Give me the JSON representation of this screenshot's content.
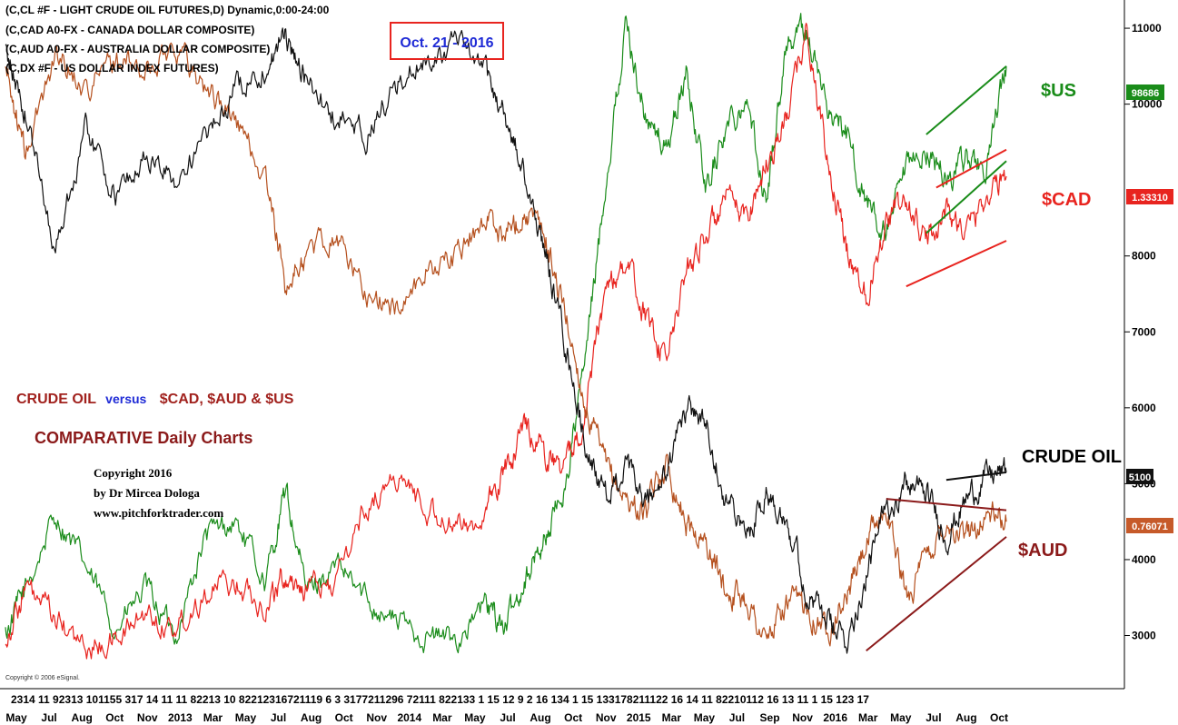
{
  "chart_data": {
    "type": "line",
    "header_lines": [
      "(C,CL #F - LIGHT CRUDE OIL FUTURES,D) Dynamic,0:00-24:00",
      "(C,CAD A0-FX - CANADA DOLLAR COMPOSITE)",
      "(C,AUD A0-FX - AUSTRALIA DOLLAR COMPOSITE)",
      "(C,DX #F - US DOLLAR INDEX FUTURES)"
    ],
    "date_box": "Oct. 21 - 2016",
    "title_parts": [
      "CRUDE OIL",
      "versus",
      "$CAD, $AUD & $US"
    ],
    "subtitle": "COMPARATIVE Daily Charts",
    "copyright_lines": [
      "Copyright 2016",
      "by Dr Mircea Dologa",
      "www.pitchforktrader.com"
    ],
    "esignal_note": "Copyright © 2006 eSignal.",
    "y_ticks": [
      3000,
      4000,
      5000,
      6000,
      7000,
      8000,
      10000,
      11000
    ],
    "y_tick_labels": [
      "3000",
      "4000",
      "5000",
      "6000",
      "7000",
      "8000",
      "10000",
      "11000"
    ],
    "x_day_labels": "2314 11 92313 101155 317 14 11 11 82213 10 82212316721119 6 3 3177211296 72111 822133 1 15 12 9 2 16 134 1 15 133178211122 16 14 11 82210112 16 13 11 1 15 123 17",
    "x_month_labels": [
      "May",
      "Jul",
      "Aug",
      "Oct",
      "Nov",
      "2013",
      "Mar",
      "May",
      "Jul",
      "Aug",
      "Oct",
      "Nov",
      "2014",
      "Mar",
      "May",
      "Jul",
      "Aug",
      "Oct",
      "Nov",
      "2015",
      "Mar",
      "May",
      "Jul",
      "Sep",
      "Nov",
      "2016",
      "Mar",
      "May",
      "Jul",
      "Aug",
      "Oct"
    ],
    "series": [
      {
        "name": "$US",
        "color": "#1a8c1a",
        "last_value": "98686",
        "points": [
          [
            0,
            3020
          ],
          [
            0.02,
            3600
          ],
          [
            0.05,
            4600
          ],
          [
            0.08,
            3900
          ],
          [
            0.11,
            3100
          ],
          [
            0.14,
            3600
          ],
          [
            0.17,
            3000
          ],
          [
            0.2,
            4300
          ],
          [
            0.23,
            4500
          ],
          [
            0.26,
            3700
          ],
          [
            0.28,
            4900
          ],
          [
            0.3,
            3600
          ],
          [
            0.33,
            3900
          ],
          [
            0.36,
            3500
          ],
          [
            0.39,
            3200
          ],
          [
            0.42,
            3000
          ],
          [
            0.45,
            2950
          ],
          [
            0.48,
            3400
          ],
          [
            0.5,
            3100
          ],
          [
            0.52,
            3800
          ],
          [
            0.54,
            4300
          ],
          [
            0.56,
            5000
          ],
          [
            0.58,
            6700
          ],
          [
            0.6,
            9000
          ],
          [
            0.62,
            11050
          ],
          [
            0.64,
            9800
          ],
          [
            0.66,
            9400
          ],
          [
            0.68,
            10400
          ],
          [
            0.7,
            8900
          ],
          [
            0.72,
            9700
          ],
          [
            0.74,
            10100
          ],
          [
            0.76,
            8700
          ],
          [
            0.78,
            10800
          ],
          [
            0.8,
            11000
          ],
          [
            0.82,
            10000
          ],
          [
            0.84,
            9600
          ],
          [
            0.86,
            8700
          ],
          [
            0.88,
            8250
          ],
          [
            0.9,
            9100
          ],
          [
            0.92,
            9400
          ],
          [
            0.94,
            9000
          ],
          [
            0.96,
            9300
          ],
          [
            0.98,
            9150
          ],
          [
            1.0,
            10500
          ]
        ]
      },
      {
        "name": "$CAD",
        "color": "#e8241f",
        "last_value": "1.33310",
        "points": [
          [
            0,
            2960
          ],
          [
            0.02,
            3600
          ],
          [
            0.05,
            3200
          ],
          [
            0.08,
            2800
          ],
          [
            0.11,
            2950
          ],
          [
            0.14,
            3300
          ],
          [
            0.17,
            3100
          ],
          [
            0.2,
            3600
          ],
          [
            0.23,
            3700
          ],
          [
            0.26,
            3400
          ],
          [
            0.28,
            3800
          ],
          [
            0.3,
            3600
          ],
          [
            0.33,
            3700
          ],
          [
            0.36,
            4700
          ],
          [
            0.39,
            5100
          ],
          [
            0.42,
            4700
          ],
          [
            0.45,
            4400
          ],
          [
            0.48,
            4600
          ],
          [
            0.5,
            5200
          ],
          [
            0.52,
            5800
          ],
          [
            0.54,
            5400
          ],
          [
            0.56,
            5200
          ],
          [
            0.58,
            6000
          ],
          [
            0.6,
            7600
          ],
          [
            0.62,
            7900
          ],
          [
            0.64,
            7200
          ],
          [
            0.66,
            6600
          ],
          [
            0.68,
            7800
          ],
          [
            0.7,
            8300
          ],
          [
            0.72,
            8700
          ],
          [
            0.74,
            8500
          ],
          [
            0.76,
            9200
          ],
          [
            0.78,
            9800
          ],
          [
            0.8,
            11000
          ],
          [
            0.82,
            9300
          ],
          [
            0.84,
            8100
          ],
          [
            0.86,
            7500
          ],
          [
            0.88,
            8500
          ],
          [
            0.9,
            8700
          ],
          [
            0.92,
            8200
          ],
          [
            0.94,
            8600
          ],
          [
            0.96,
            8300
          ],
          [
            0.98,
            8800
          ],
          [
            1.0,
            9050
          ]
        ]
      },
      {
        "name": "$AUD",
        "color": "#b5501e",
        "last_value": "0.76071",
        "points": [
          [
            0,
            10500
          ],
          [
            0.02,
            9300
          ],
          [
            0.05,
            10700
          ],
          [
            0.08,
            10200
          ],
          [
            0.11,
            10600
          ],
          [
            0.14,
            10400
          ],
          [
            0.17,
            10800
          ],
          [
            0.2,
            10200
          ],
          [
            0.23,
            9800
          ],
          [
            0.26,
            9000
          ],
          [
            0.28,
            7600
          ],
          [
            0.3,
            8000
          ],
          [
            0.33,
            8300
          ],
          [
            0.36,
            7500
          ],
          [
            0.39,
            7300
          ],
          [
            0.42,
            7800
          ],
          [
            0.45,
            8000
          ],
          [
            0.48,
            8500
          ],
          [
            0.5,
            8300
          ],
          [
            0.52,
            8600
          ],
          [
            0.54,
            8200
          ],
          [
            0.56,
            7200
          ],
          [
            0.58,
            6000
          ],
          [
            0.6,
            5200
          ],
          [
            0.62,
            4800
          ],
          [
            0.64,
            4600
          ],
          [
            0.66,
            5300
          ],
          [
            0.68,
            4500
          ],
          [
            0.7,
            4200
          ],
          [
            0.72,
            3600
          ],
          [
            0.74,
            3500
          ],
          [
            0.76,
            2900
          ],
          [
            0.78,
            3400
          ],
          [
            0.8,
            3400
          ],
          [
            0.82,
            3100
          ],
          [
            0.84,
            3500
          ],
          [
            0.86,
            4200
          ],
          [
            0.88,
            4700
          ],
          [
            0.9,
            3500
          ],
          [
            0.92,
            4000
          ],
          [
            0.94,
            4500
          ],
          [
            0.96,
            4300
          ],
          [
            0.98,
            4600
          ],
          [
            1.0,
            4500
          ]
        ]
      },
      {
        "name": "CRUDE OIL",
        "color": "#111111",
        "last_value": "5100",
        "points": [
          [
            0,
            10700
          ],
          [
            0.02,
            9900
          ],
          [
            0.05,
            8100
          ],
          [
            0.08,
            9700
          ],
          [
            0.11,
            8800
          ],
          [
            0.14,
            9300
          ],
          [
            0.17,
            9000
          ],
          [
            0.2,
            9500
          ],
          [
            0.23,
            10200
          ],
          [
            0.26,
            10500
          ],
          [
            0.28,
            10900
          ],
          [
            0.3,
            10300
          ],
          [
            0.33,
            9800
          ],
          [
            0.36,
            9600
          ],
          [
            0.39,
            10200
          ],
          [
            0.42,
            10600
          ],
          [
            0.45,
            10800
          ],
          [
            0.48,
            10400
          ],
          [
            0.5,
            9800
          ],
          [
            0.52,
            9000
          ],
          [
            0.54,
            8000
          ],
          [
            0.56,
            6800
          ],
          [
            0.58,
            5500
          ],
          [
            0.6,
            4800
          ],
          [
            0.62,
            5200
          ],
          [
            0.64,
            4700
          ],
          [
            0.66,
            5100
          ],
          [
            0.68,
            6000
          ],
          [
            0.7,
            5800
          ],
          [
            0.72,
            4800
          ],
          [
            0.74,
            4300
          ],
          [
            0.76,
            4900
          ],
          [
            0.78,
            4600
          ],
          [
            0.8,
            3600
          ],
          [
            0.82,
            3200
          ],
          [
            0.84,
            2900
          ],
          [
            0.86,
            3800
          ],
          [
            0.88,
            4700
          ],
          [
            0.9,
            5000
          ],
          [
            0.92,
            4900
          ],
          [
            0.94,
            4300
          ],
          [
            0.96,
            4800
          ],
          [
            0.98,
            5100
          ],
          [
            1.0,
            5150
          ]
        ]
      }
    ],
    "channels": [
      {
        "name": "$US",
        "color": "#1a8c1a",
        "lines": [
          [
            [
              0.92,
              9600
            ],
            [
              1.0,
              10500
            ]
          ],
          [
            [
              0.92,
              8300
            ],
            [
              1.0,
              9250
            ]
          ]
        ]
      },
      {
        "name": "$CAD",
        "color": "#e8241f",
        "lines": [
          [
            [
              0.93,
              8900
            ],
            [
              1.0,
              9400
            ]
          ],
          [
            [
              0.9,
              7600
            ],
            [
              1.0,
              8200
            ]
          ]
        ]
      },
      {
        "name": "CRUDE OIL",
        "color": "#111111",
        "lines": [
          [
            [
              0.94,
              5050
            ],
            [
              1.0,
              5150
            ]
          ]
        ]
      },
      {
        "name": "$AUD",
        "color": "#8b1a1a",
        "lines": [
          [
            [
              0.88,
              4800
            ],
            [
              1.0,
              4650
            ]
          ],
          [
            [
              0.86,
              2800
            ],
            [
              1.0,
              4300
            ]
          ]
        ]
      }
    ]
  }
}
